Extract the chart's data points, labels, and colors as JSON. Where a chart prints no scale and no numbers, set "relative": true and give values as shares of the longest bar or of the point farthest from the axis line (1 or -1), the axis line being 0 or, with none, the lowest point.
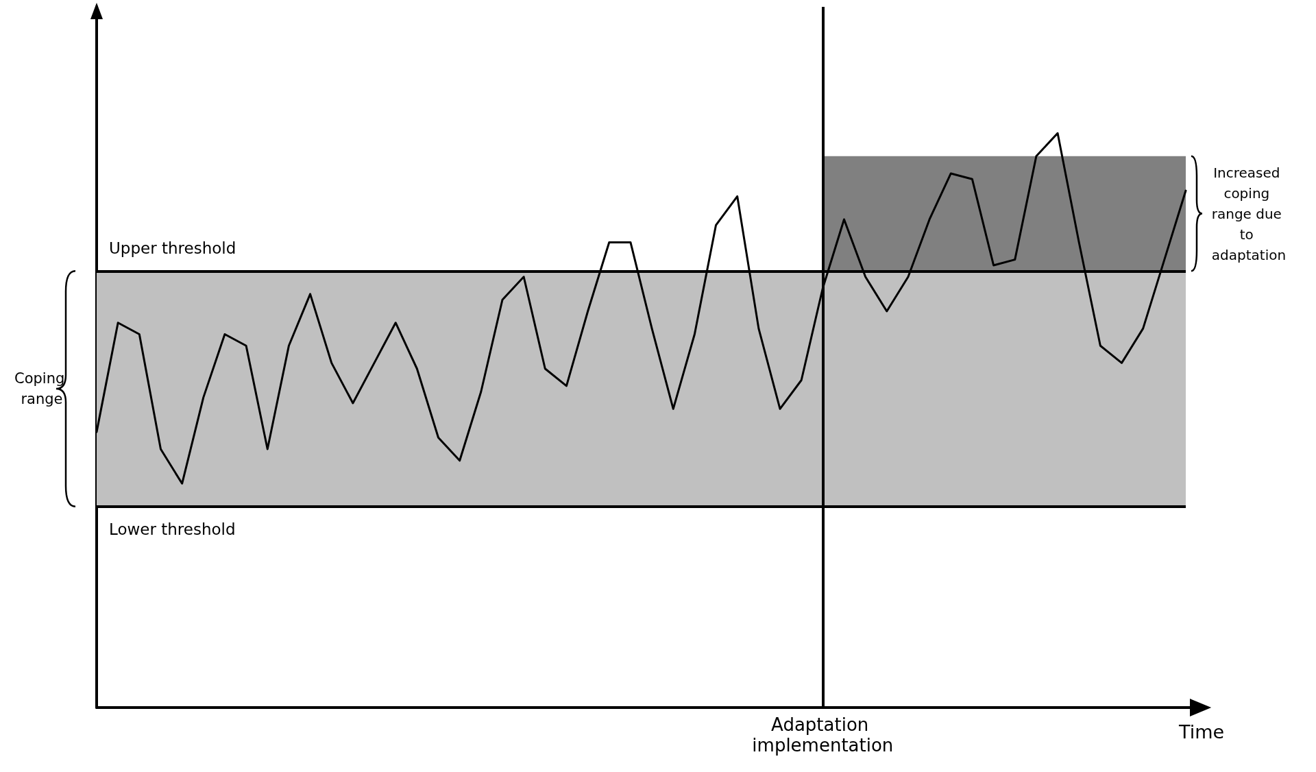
{
  "chart_data": {
    "type": "line",
    "relative": true,
    "xlabel": "Time",
    "annotations": [
      "Adaptation implementation"
    ],
    "grid": false,
    "marker": "none",
    "line_style": "solid",
    "categories": [
      null,
      null,
      null,
      null,
      null,
      null,
      null,
      null,
      null,
      null,
      null,
      null,
      null,
      null,
      null,
      null,
      null,
      null,
      null,
      null,
      null,
      null,
      null,
      null,
      null,
      null,
      null,
      null,
      null,
      null,
      null,
      null,
      null,
      null,
      null,
      null,
      null,
      null,
      null,
      null,
      null,
      null,
      null,
      null,
      null,
      null,
      null,
      null,
      null,
      null,
      null,
      null
    ],
    "series": [
      {
        "color": "#000000",
        "values": [
          0.48,
          0.67,
          0.65,
          0.45,
          0.39,
          0.54,
          0.65,
          0.63,
          0.45,
          0.63,
          0.72,
          0.6,
          0.53,
          0.6,
          0.67,
          0.59,
          0.47,
          0.43,
          0.55,
          0.71,
          0.75,
          0.59,
          0.56,
          0.69,
          0.81,
          0.81,
          0.66,
          0.52,
          0.65,
          0.84,
          0.89,
          0.66,
          0.52,
          0.57,
          0.73,
          0.85,
          0.75,
          0.69,
          0.75,
          0.85,
          0.93,
          0.92,
          0.77,
          0.78,
          0.96,
          1,
          0.81,
          0.63,
          0.6,
          0.66,
          0.78,
          0.9
        ]
      }
    ],
    "ref_lines": [
      {
        "axis": "y",
        "value": 0.76,
        "label": "Upper threshold",
        "color": "#000000"
      },
      {
        "axis": "y",
        "value": 0.35,
        "label": "Lower threshold",
        "color": "#000000"
      }
    ],
    "bands": [
      {
        "axis": "y",
        "from": 0.35,
        "to": 0.76,
        "label": "Coping range",
        "color": "#c0c0c0"
      },
      {
        "axis": "y",
        "from": 0.76,
        "to": 0.96,
        "label": "Increased coping range due to adaptation",
        "color": "#808080"
      }
    ]
  }
}
